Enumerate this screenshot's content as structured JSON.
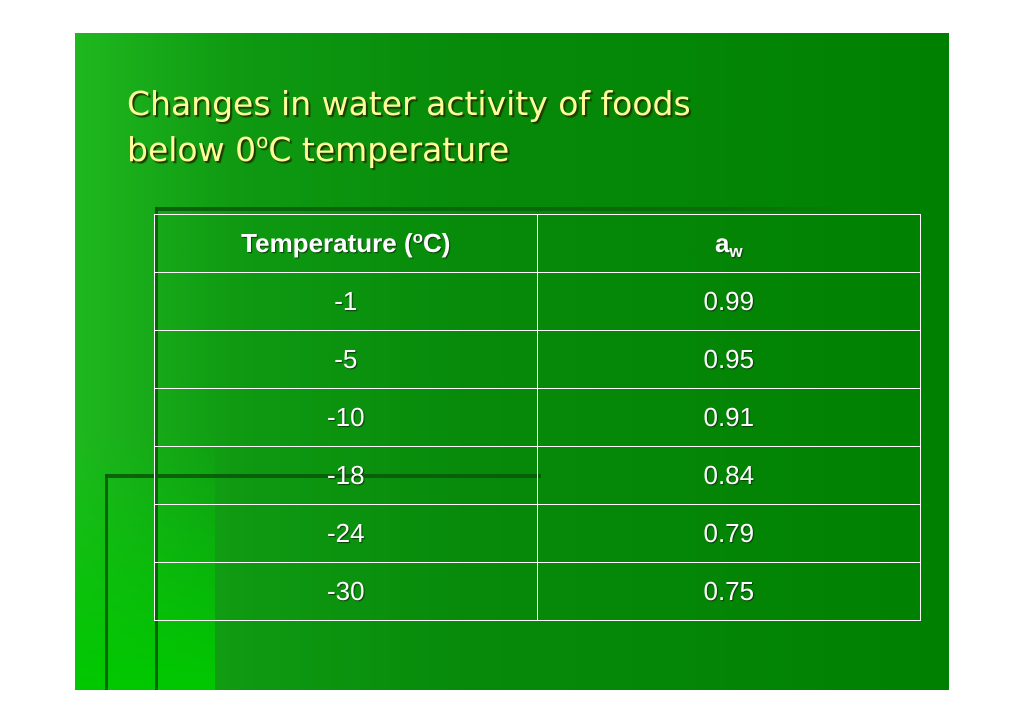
{
  "slide": {
    "title_line1": "Changes in water activity of foods",
    "title_line2_prefix": "below 0",
    "title_line2_sup": "o",
    "title_line2_suffix": "C temperature"
  },
  "table": {
    "header_temp_prefix": "Temperature (",
    "header_temp_sup": "o",
    "header_temp_suffix": "C)",
    "header_aw_main": "a",
    "header_aw_sub": "w",
    "rows": [
      {
        "temperature": "-1",
        "aw": "0.99"
      },
      {
        "temperature": "-5",
        "aw": "0.95"
      },
      {
        "temperature": "-10",
        "aw": "0.91"
      },
      {
        "temperature": "-18",
        "aw": "0.84"
      },
      {
        "temperature": "-24",
        "aw": "0.79"
      },
      {
        "temperature": "-30",
        "aw": "0.75"
      }
    ]
  },
  "colors": {
    "background": "#008000",
    "title_text": "#ffff99",
    "table_text": "#ffffff",
    "table_border": "#ffffff"
  }
}
